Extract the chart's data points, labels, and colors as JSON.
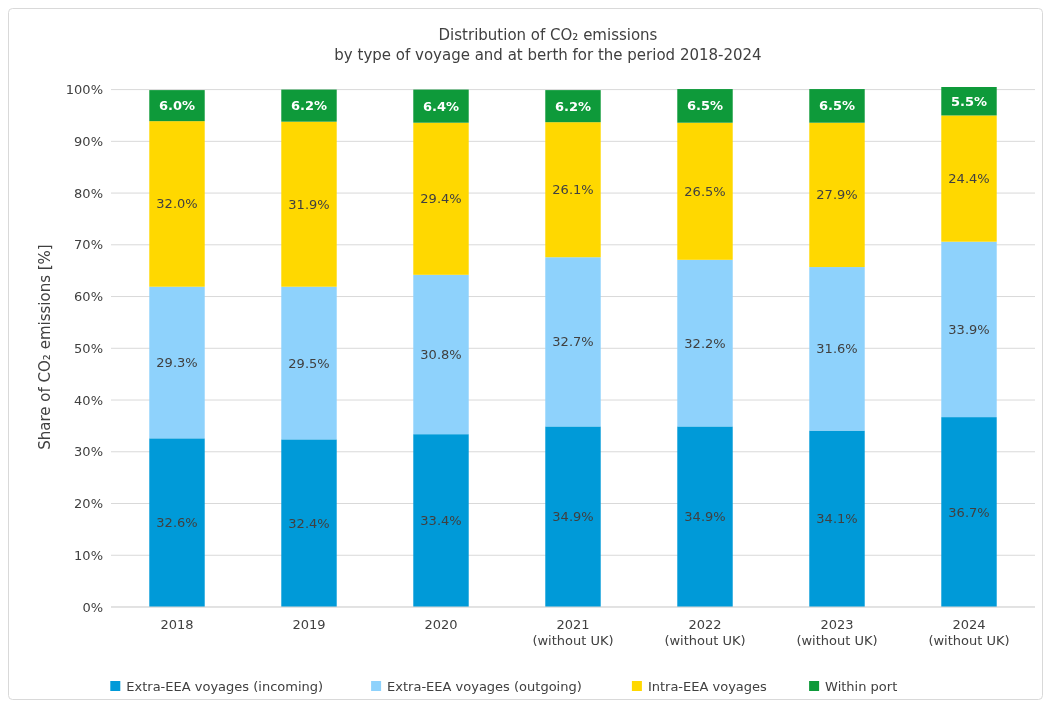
{
  "chart_data": {
    "type": "bar",
    "stacked": true,
    "title": "Distribution of CO₂ emissions\nby type of voyage and at berth for the period 2018-2024",
    "ylabel": "Share of CO₂ emissions [%]",
    "categories": [
      "2018",
      "2019",
      "2020",
      "2021\n(without UK)",
      "2022\n(without UK)",
      "2023\n(without UK)",
      "2024\n(without UK)"
    ],
    "series": [
      {
        "name": "Extra-EEA voyages (incoming)",
        "color": "#009ad8",
        "values": [
          32.6,
          32.4,
          33.4,
          34.9,
          34.9,
          34.1,
          36.7
        ],
        "value_labels": [
          "32.6%",
          "32.4%",
          "33.4%",
          "34.9%",
          "34.9%",
          "34.1%",
          "36.7%"
        ]
      },
      {
        "name": "Extra-EEA voyages (outgoing)",
        "color": "#8ed2fc",
        "values": [
          29.3,
          29.5,
          30.8,
          32.7,
          32.2,
          31.6,
          33.9
        ],
        "value_labels": [
          "29.3%",
          "29.5%",
          "30.8%",
          "32.7%",
          "32.2%",
          "31.6%",
          "33.9%"
        ]
      },
      {
        "name": "Intra-EEA voyages",
        "color": "#ffd800",
        "values": [
          32.0,
          31.9,
          29.4,
          26.1,
          26.5,
          27.9,
          24.4
        ],
        "value_labels": [
          "32.0%",
          "31.9%",
          "29.4%",
          "26.1%",
          "26.5%",
          "27.9%",
          "24.4%"
        ]
      },
      {
        "name": "Within port",
        "color": "#0e9a3a",
        "values": [
          6.0,
          6.2,
          6.4,
          6.2,
          6.5,
          6.5,
          5.5
        ],
        "value_labels": [
          "6.0%",
          "6.2%",
          "6.4%",
          "6.2%",
          "6.5%",
          "6.5%",
          "5.5%"
        ]
      }
    ],
    "ylim": [
      0,
      100.5
    ],
    "yticks": [
      {
        "value": 0,
        "label": "0%"
      },
      {
        "value": 10,
        "label": "10%"
      },
      {
        "value": 20,
        "label": "20%"
      },
      {
        "value": 30,
        "label": "30%"
      },
      {
        "value": 40,
        "label": "40%"
      },
      {
        "value": 50,
        "label": "50%"
      },
      {
        "value": 60,
        "label": "60%"
      },
      {
        "value": 70,
        "label": "70%"
      },
      {
        "value": 80,
        "label": "80%"
      },
      {
        "value": 90,
        "label": "90%"
      },
      {
        "value": 100,
        "label": "100%"
      }
    ],
    "grid": "y",
    "legend": "bottom"
  }
}
